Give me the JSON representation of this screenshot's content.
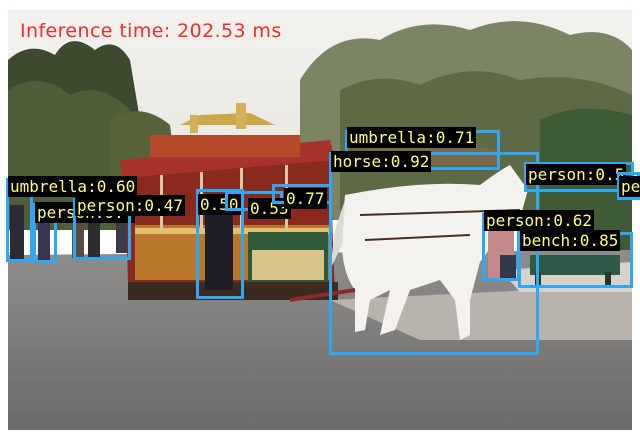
{
  "inference_text": "Inference time: 202.53 ms",
  "colors": {
    "box": "#2ea8f5",
    "label_bg": "#000000",
    "label_text": "#ffff80",
    "inference_text": "#ff2b2b"
  },
  "detections": [
    {
      "name": "det-umbrella-left",
      "label": "umbrella:0.60"
    },
    {
      "name": "det-person-far-left",
      "label": "person:0.4"
    },
    {
      "name": "det-person-left",
      "label": "person:0.47"
    },
    {
      "name": "det-person-trolley-a",
      "label": "0.50"
    },
    {
      "name": "det-person-trolley-b",
      "label": "0.53"
    },
    {
      "name": "det-person-trolley-c",
      "label": "0.77"
    },
    {
      "name": "det-umbrella-right",
      "label": "umbrella:0.71"
    },
    {
      "name": "det-horse",
      "label": "horse:0.92"
    },
    {
      "name": "det-person-right",
      "label": "person:0.62"
    },
    {
      "name": "det-bench",
      "label": "bench:0.85"
    },
    {
      "name": "det-person-far-right",
      "label": "person:0.5"
    },
    {
      "name": "det-person-edge",
      "label": "pe"
    }
  ]
}
